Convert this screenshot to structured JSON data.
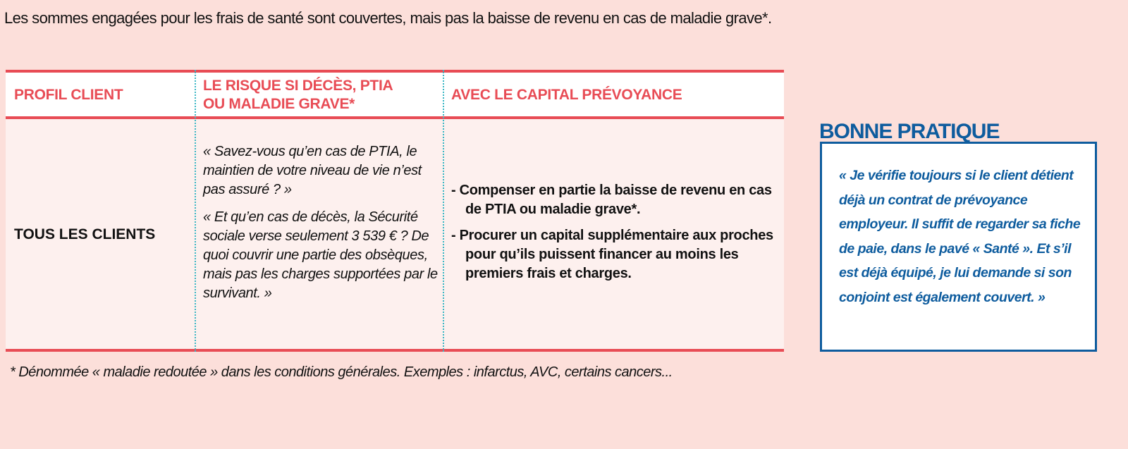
{
  "intro": "Les sommes engagées pour les frais de santé sont couvertes, mais pas la baisse de revenu en cas de maladie grave*.",
  "table": {
    "headers": [
      "PROFIL CLIENT",
      "LE RISQUE SI DÉCÈS, PTIA OU MALADIE GRAVE*",
      "AVEC LE CAPITAL PRÉVOYANCE"
    ],
    "row": {
      "profile": "TOUS LES CLIENTS",
      "risk": [
        "« Savez-vous qu’en cas de PTIA, le maintien de votre niveau de vie n’est pas assuré ? »",
        "« Et qu’en cas de décès, la Sécurité sociale verse seulement 3 539 € ? De quoi couvrir une partie des obsèques, mais pas les charges supportées par le survivant. »"
      ],
      "benefits": [
        "- Compenser en partie la baisse de revenu en cas de PTIA ou maladie grave*.",
        "- Procurer un capital supplémentaire aux proches pour qu’ils puissent financer au moins les premiers frais et charges."
      ]
    }
  },
  "footnote": "* Dénommée « maladie redoutée » dans les conditions générales. Exemples : infarctus, AVC, certains cancers...",
  "bonne_pratique": {
    "title": "BONNE PRATIQUE",
    "text": "« Je vérifie toujours si le client détient déjà un contrat de prévoyance employeur. Il suffit de regarder sa fiche de paie, dans le pavé « Santé ». Et s’il est déjà équipé, je lui demande si son conjoint est également couvert. »"
  },
  "colors": {
    "background": "#fcdfda",
    "accent_red": "#e84c55",
    "accent_blue": "#0e5c9e",
    "separator": "#3bb7c4"
  }
}
